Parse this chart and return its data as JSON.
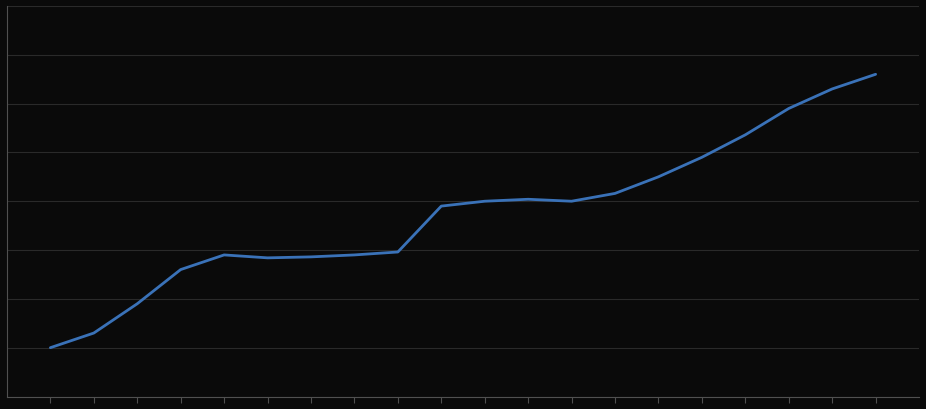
{
  "x": [
    1,
    2,
    3,
    4,
    5,
    6,
    7,
    8,
    9,
    10,
    11,
    12,
    13,
    14,
    15,
    16,
    17,
    18,
    19,
    20
  ],
  "y": [
    5.0,
    6.5,
    9.5,
    13.0,
    14.5,
    14.2,
    14.3,
    14.5,
    14.8,
    19.5,
    20.0,
    20.2,
    20.0,
    20.8,
    22.5,
    24.5,
    26.8,
    29.5,
    31.5,
    33.0
  ],
  "xlim": [
    0.0,
    21.0
  ],
  "ylim": [
    0,
    40
  ],
  "ytick_positions": [
    0,
    5,
    10,
    15,
    20,
    25,
    30,
    35,
    40
  ],
  "xtick_positions": [
    1,
    2,
    3,
    4,
    5,
    6,
    7,
    8,
    9,
    10,
    11,
    12,
    13,
    14,
    15,
    16,
    17,
    18,
    19,
    20
  ],
  "line_color": "#3a72b8",
  "background_color": "#0a0a0a",
  "plot_bg_color": "#0a0a0a",
  "grid_color": "#2a2a2a",
  "spine_color": "#505050",
  "tick_color": "#505050",
  "line_width": 2.0,
  "grid_linewidth": 0.8
}
